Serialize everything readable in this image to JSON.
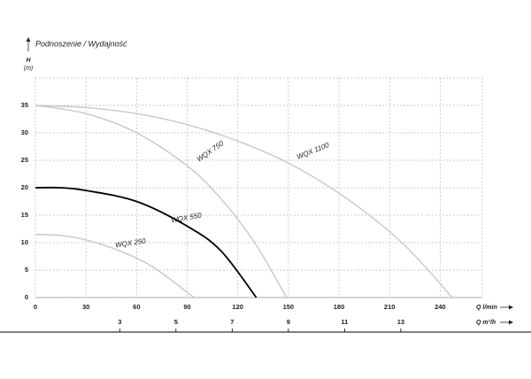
{
  "chart_data": {
    "type": "line",
    "title": "Podnoszenie / Wydajność",
    "y_label": "H",
    "y_unit": "(m)",
    "x_label": "Q l/min",
    "x2_label": "Q m³/h",
    "xlim": [
      0,
      265
    ],
    "xticks": [
      0,
      30,
      60,
      90,
      120,
      150,
      180,
      210,
      240
    ],
    "ylim": [
      0,
      40
    ],
    "yticks": [
      0,
      5,
      10,
      15,
      20,
      25,
      30,
      35
    ],
    "x2lim": [
      0,
      15.9
    ],
    "x2ticks": [
      3,
      5,
      7,
      9,
      11,
      13
    ],
    "grid": true,
    "series": [
      {
        "name": "WQX 1100",
        "color": "#c8c8c8",
        "x": [
          0,
          30,
          60,
          90,
          120,
          150,
          180,
          210,
          230,
          247
        ],
        "values": [
          35,
          34.6,
          33.5,
          31.5,
          28.5,
          24.5,
          19,
          12,
          6,
          0
        ]
      },
      {
        "name": "WQX 750",
        "color": "#c8c8c8",
        "x": [
          0,
          30,
          60,
          90,
          110,
          130,
          149
        ],
        "values": [
          35,
          33.5,
          30,
          24,
          18,
          10,
          0
        ]
      },
      {
        "name": "WQX 550",
        "color": "#000000",
        "x": [
          0,
          15,
          30,
          60,
          90,
          110,
          131
        ],
        "values": [
          20,
          20,
          19.5,
          17.5,
          13,
          8.5,
          0
        ]
      },
      {
        "name": "WQX 250",
        "color": "#c8c8c8",
        "x": [
          0,
          15,
          30,
          50,
          70,
          94
        ],
        "values": [
          11.5,
          11.3,
          10.5,
          8.5,
          5.5,
          0
        ]
      }
    ]
  }
}
